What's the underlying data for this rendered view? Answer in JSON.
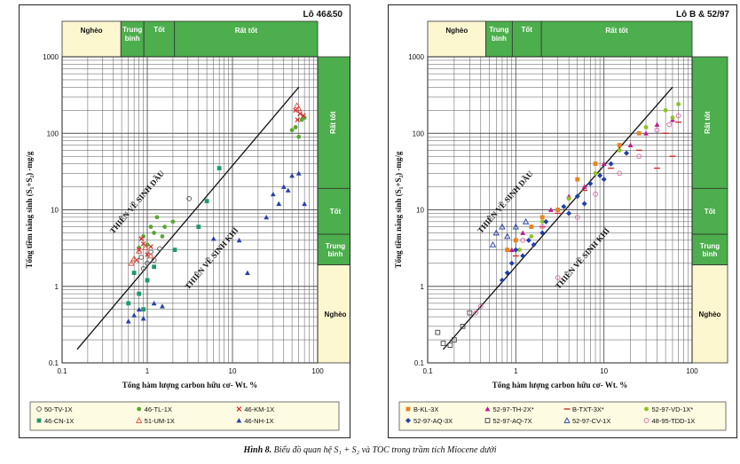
{
  "figure": {
    "caption_label": "Hình 8.",
    "caption_text": "Biểu đồ quan hệ S₁ + S₂ và TOC trong trầm tích Miocene dưới"
  },
  "colors": {
    "band_green": "#4cae4c",
    "band_light_green": "#8fd18f",
    "band_cream": "#fdf7d0",
    "legend_bg": "#fdfbe2",
    "grid": "#555555"
  },
  "chart_data": [
    {
      "type": "scatter",
      "title": "Lô 46&50",
      "xlabel": "Tổng hàm lượng carbon hữu cơ- Wt. %",
      "ylabel": "Tổng tiềm năng sinh (S₁+S₂) -mg/g",
      "xscale": "log",
      "yscale": "log",
      "xlim": [
        0.1,
        100
      ],
      "ylim": [
        0.1,
        1000
      ],
      "x_ticks": [
        "0.1",
        "1",
        "10",
        "100"
      ],
      "y_ticks": [
        "0.1",
        "1",
        "10",
        "100",
        "1000"
      ],
      "grid": true,
      "legend_position": "bottom",
      "top_bands": [
        "Nghèo",
        "Trung bình",
        "Tốt",
        "Rất tốt"
      ],
      "right_bands": [
        "Rất tốt",
        "Tốt",
        "Trung bình",
        "Nghèo"
      ],
      "zone_labels": [
        "THIÊN VỀ SINH DẦU",
        "THIÊN VỀ SINH KHÍ"
      ],
      "series": [
        {
          "name": "50-TV-1X",
          "marker": "circle-open",
          "color": "#555555",
          "points": [
            [
              0.85,
              2.4
            ],
            [
              1.0,
              2.0
            ],
            [
              1.2,
              2.2
            ],
            [
              1.4,
              3.1
            ],
            [
              0.9,
              1.7
            ],
            [
              3.1,
              14
            ],
            [
              1.1,
              2.8
            ]
          ]
        },
        {
          "name": "46-TL-1X",
          "marker": "circle",
          "color": "#5aa832",
          "points": [
            [
              0.9,
              4.5
            ],
            [
              1.1,
              6
            ],
            [
              1.3,
              8
            ],
            [
              1.6,
              6
            ],
            [
              2.0,
              7
            ],
            [
              1.0,
              3.5
            ],
            [
              1.2,
              5
            ],
            [
              0.8,
              3.2
            ],
            [
              1.5,
              4.5
            ],
            [
              55,
              120
            ],
            [
              60,
              90
            ],
            [
              65,
              150
            ],
            [
              50,
              110
            ],
            [
              70,
              160
            ]
          ]
        },
        {
          "name": "46-KM-1X",
          "marker": "x",
          "color": "#d62828",
          "points": [
            [
              0.8,
              3
            ],
            [
              0.9,
              3.6
            ],
            [
              1.0,
              2.6
            ],
            [
              0.75,
              2.2
            ],
            [
              1.1,
              3.3
            ],
            [
              0.85,
              4.2
            ],
            [
              55,
              200
            ],
            [
              62,
              180
            ],
            [
              68,
              170
            ],
            [
              58,
              150
            ]
          ]
        },
        {
          "name": "46-CN-1X",
          "marker": "square",
          "color": "#1f9a6a",
          "points": [
            [
              0.7,
              1.5
            ],
            [
              0.8,
              0.8
            ],
            [
              1.0,
              1.2
            ],
            [
              0.9,
              0.5
            ],
            [
              0.6,
              0.6
            ],
            [
              1.2,
              1.8
            ],
            [
              2.1,
              3
            ],
            [
              4,
              6
            ],
            [
              5,
              13
            ],
            [
              7,
              35
            ]
          ]
        },
        {
          "name": "51-UM-1X",
          "marker": "triangle-open",
          "color": "#e04a3a",
          "points": [
            [
              0.7,
              2.3
            ],
            [
              0.8,
              2.9
            ],
            [
              0.95,
              3.2
            ],
            [
              1.1,
              2.5
            ],
            [
              0.65,
              2.0
            ],
            [
              60,
              210
            ],
            [
              57,
              230
            ]
          ]
        },
        {
          "name": "46-NH-1X",
          "marker": "triangle",
          "color": "#2a3fa8",
          "points": [
            [
              0.6,
              0.35
            ],
            [
              0.7,
              0.42
            ],
            [
              0.9,
              0.38
            ],
            [
              1.2,
              0.6
            ],
            [
              1.5,
              0.55
            ],
            [
              0.8,
              0.5
            ],
            [
              6,
              4.2
            ],
            [
              12,
              4.0
            ],
            [
              15,
              1.5
            ],
            [
              25,
              8
            ],
            [
              30,
              16
            ],
            [
              40,
              20
            ],
            [
              50,
              28
            ],
            [
              60,
              30
            ],
            [
              45,
              18
            ],
            [
              70,
              12
            ],
            [
              35,
              12
            ]
          ]
        }
      ]
    },
    {
      "type": "scatter",
      "title": "Lô B & 52/97",
      "xlabel": "Tổng hàm lượng carbon hữu cơ- Wt. %",
      "ylabel": "Tổng tiềm năng sinh (S₁+S₂) -mg/g",
      "xscale": "log",
      "yscale": "log",
      "xlim": [
        0.1,
        100
      ],
      "ylim": [
        0.1,
        1000
      ],
      "x_ticks": [
        "0.1",
        "1",
        "10",
        "100"
      ],
      "y_ticks": [
        "0.1",
        "1",
        "10",
        "100",
        "1000"
      ],
      "grid": true,
      "legend_position": "bottom",
      "top_bands": [
        "Nghèo",
        "Trung bình",
        "Tốt",
        "Rất tốt"
      ],
      "right_bands": [
        "Rất tốt",
        "Tốt",
        "Trung bình",
        "Nghèo"
      ],
      "zone_labels": [
        "THIÊN VỀ SINH DẦU",
        "THIÊN VỀ SINH KHÍ"
      ],
      "series": [
        {
          "name": "B-KL-3X",
          "marker": "square",
          "color": "#e8821e",
          "points": [
            [
              1.0,
              4
            ],
            [
              2,
              8
            ],
            [
              3,
              10
            ],
            [
              5,
              25
            ],
            [
              8,
              40
            ],
            [
              15,
              70
            ],
            [
              25,
              100
            ],
            [
              0.8,
              3
            ],
            [
              1.5,
              6
            ]
          ]
        },
        {
          "name": "52-97-TH-2X*",
          "marker": "triangle",
          "color": "#c2188a",
          "points": [
            [
              0.9,
              3
            ],
            [
              1.2,
              5
            ],
            [
              2.5,
              10
            ],
            [
              4,
              15
            ],
            [
              6,
              20
            ],
            [
              10,
              40
            ],
            [
              20,
              70
            ],
            [
              30,
              100
            ],
            [
              40,
              130
            ],
            [
              60,
              150
            ]
          ]
        },
        {
          "name": "B-TXT-3X*",
          "marker": "dash",
          "color": "#d62828",
          "points": [
            [
              1,
              2.5
            ],
            [
              2,
              6
            ],
            [
              3,
              9
            ],
            [
              6,
              18
            ],
            [
              12,
              35
            ],
            [
              25,
              60
            ],
            [
              50,
              100
            ],
            [
              70,
              140
            ],
            [
              60,
              50
            ],
            [
              40,
              35
            ]
          ]
        },
        {
          "name": "52-97-VD-1X*",
          "marker": "circle",
          "color": "#8fc31f",
          "points": [
            [
              1.1,
              3
            ],
            [
              2,
              7
            ],
            [
              4,
              14
            ],
            [
              8,
              30
            ],
            [
              15,
              60
            ],
            [
              30,
              120
            ],
            [
              50,
              200
            ],
            [
              70,
              240
            ],
            [
              60,
              160
            ],
            [
              1.5,
              4.5
            ]
          ]
        },
        {
          "name": "52-97-AQ-3X",
          "marker": "diamond",
          "color": "#1f3fa8",
          "points": [
            [
              0.8,
              1.5
            ],
            [
              1,
              3
            ],
            [
              1.4,
              4
            ],
            [
              2.2,
              7
            ],
            [
              3.5,
              11
            ],
            [
              5,
              15
            ],
            [
              7,
              22
            ],
            [
              9,
              28
            ],
            [
              12,
              40
            ],
            [
              18,
              55
            ],
            [
              0.9,
              2
            ],
            [
              1.2,
              2.5
            ],
            [
              2,
              5
            ],
            [
              4,
              9
            ],
            [
              6,
              12
            ],
            [
              10,
              25
            ],
            [
              0.7,
              1.2
            ],
            [
              1.6,
              3.5
            ]
          ]
        },
        {
          "name": "52-97-AQ-7X",
          "marker": "square-open",
          "color": "#444444",
          "points": [
            [
              0.13,
              0.25
            ],
            [
              0.15,
              0.18
            ],
            [
              0.18,
              0.17
            ],
            [
              0.2,
              0.2
            ],
            [
              0.25,
              0.3
            ],
            [
              0.3,
              0.45
            ]
          ]
        },
        {
          "name": "52-97-CV-1X",
          "marker": "triangle-open",
          "color": "#1f3fa8",
          "points": [
            [
              0.6,
              5
            ],
            [
              0.55,
              3.5
            ],
            [
              0.7,
              6
            ],
            [
              1,
              6
            ],
            [
              1.3,
              7
            ],
            [
              0.8,
              4.5
            ]
          ]
        },
        {
          "name": "48-95-TDD-1X",
          "marker": "circle-open",
          "color": "#d866a8",
          "points": [
            [
              0.35,
              0.45
            ],
            [
              0.4,
              0.55
            ],
            [
              1.2,
              4
            ],
            [
              2,
              6
            ],
            [
              3,
              1.3
            ],
            [
              5,
              8
            ],
            [
              8,
              16
            ],
            [
              15,
              30
            ],
            [
              25,
              50
            ],
            [
              40,
              110
            ],
            [
              55,
              130
            ],
            [
              70,
              170
            ]
          ]
        }
      ]
    }
  ]
}
